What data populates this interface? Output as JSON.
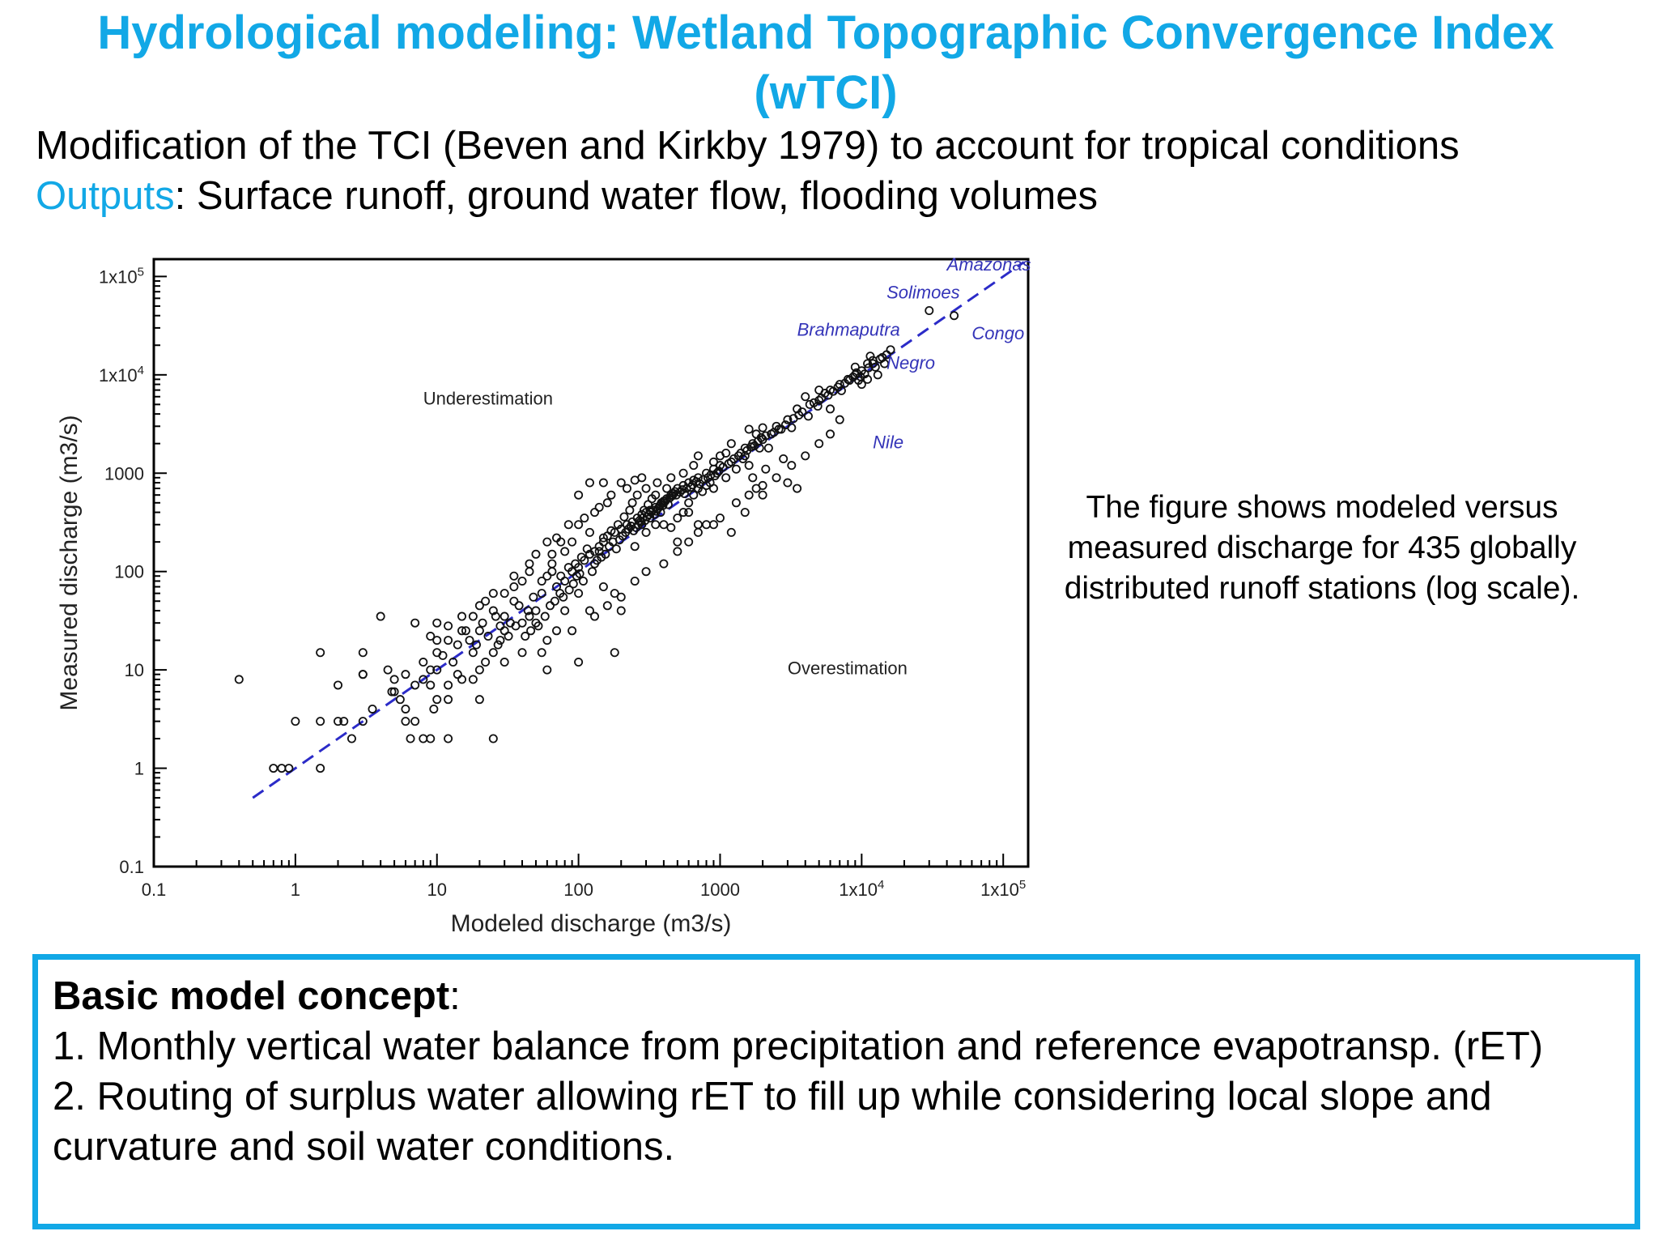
{
  "header": {
    "title": "Hydrological modeling: Wetland Topographic Convergence Index (wTCI)",
    "line1": "Modification of the TCI (Beven and Kirkby 1979) to account for tropical conditions",
    "line2_label": "Outputs",
    "line2_sep": ":",
    "line2_text": " Surface runoff, ground water flow, flooding volumes"
  },
  "caption": "The figure shows modeled versus measured discharge for 435 globally distributed runoff stations (log scale).",
  "concept": {
    "heading": "Basic model concept",
    "heading_sep": ":",
    "item1": "1. Monthly vertical water balance from precipitation and reference evapotransp. (rET)",
    "item2": "2. Routing of surplus water allowing rET to fill up while considering local slope and curvature and soil water conditions."
  },
  "colors": {
    "accent": "#12a8e6",
    "fit_line": "#2b2bc8",
    "river_label": "#3434b8"
  },
  "chart_data": {
    "type": "scatter",
    "xlabel": "Modeled discharge (m3/s)",
    "ylabel": "Measured discharge (m3/s)",
    "xscale": "log",
    "yscale": "log",
    "xlim": [
      0.1,
      150000
    ],
    "ylim": [
      0.1,
      150000
    ],
    "x_ticks": [
      {
        "value": 0.1,
        "label": "0.1"
      },
      {
        "value": 1,
        "label": "1"
      },
      {
        "value": 10,
        "label": "10"
      },
      {
        "value": 100,
        "label": "100"
      },
      {
        "value": 1000,
        "label": "1000"
      },
      {
        "value": 10000,
        "label": "1x10",
        "exp": "4"
      },
      {
        "value": 100000,
        "label": "1x10",
        "exp": "5"
      }
    ],
    "y_ticks": [
      {
        "value": 0.1,
        "label": "0.1"
      },
      {
        "value": 1,
        "label": "1"
      },
      {
        "value": 10,
        "label": "10"
      },
      {
        "value": 100,
        "label": "100"
      },
      {
        "value": 1000,
        "label": "1000"
      },
      {
        "value": 10000,
        "label": "1x10",
        "exp": "4"
      },
      {
        "value": 100000,
        "label": "1x10",
        "exp": "5"
      }
    ],
    "annotations": [
      {
        "text": "Underestimation",
        "x": 8,
        "y": 5000
      },
      {
        "text": "Overestimation",
        "x": 3000,
        "y": 9
      }
    ],
    "river_labels": [
      {
        "text": "Amazonas",
        "x": 40000,
        "y": 115000
      },
      {
        "text": "Solimoes",
        "x": 15000,
        "y": 60000
      },
      {
        "text": "Brahmaputra",
        "x": 3500,
        "y": 25000
      },
      {
        "text": "Congo",
        "x": 60000,
        "y": 23000
      },
      {
        "text": "Negro",
        "x": 15000,
        "y": 11500
      },
      {
        "text": "Nile",
        "x": 12000,
        "y": 1800
      }
    ],
    "fit_line": {
      "x": [
        0.5,
        140000
      ],
      "y": [
        0.5,
        140000
      ],
      "style": "dashed"
    },
    "points": [
      [
        0.4,
        8
      ],
      [
        0.7,
        1
      ],
      [
        0.8,
        1
      ],
      [
        0.9,
        1
      ],
      [
        1.5,
        15
      ],
      [
        1.5,
        1
      ],
      [
        1,
        3
      ],
      [
        1.5,
        3
      ],
      [
        2,
        3
      ],
      [
        2.2,
        3
      ],
      [
        2,
        7
      ],
      [
        3,
        9
      ],
      [
        2.5,
        2
      ],
      [
        3,
        3
      ],
      [
        3.5,
        4
      ],
      [
        3,
        15
      ],
      [
        4,
        35
      ],
      [
        3,
        9
      ],
      [
        5,
        8
      ],
      [
        4.5,
        10
      ],
      [
        5,
        6
      ],
      [
        6,
        4
      ],
      [
        6,
        3
      ],
      [
        6.5,
        2
      ],
      [
        7,
        3
      ],
      [
        8,
        2
      ],
      [
        9,
        2
      ],
      [
        8,
        8
      ],
      [
        9,
        10
      ],
      [
        9.5,
        4
      ],
      [
        12,
        2
      ],
      [
        10,
        5
      ],
      [
        12,
        5
      ],
      [
        7,
        30
      ],
      [
        10,
        20
      ],
      [
        15,
        25
      ],
      [
        10,
        15
      ],
      [
        12,
        20
      ],
      [
        15,
        8
      ],
      [
        18,
        8
      ],
      [
        20,
        5
      ],
      [
        25,
        2
      ],
      [
        20,
        10
      ],
      [
        25,
        15
      ],
      [
        28,
        20
      ],
      [
        30,
        25
      ],
      [
        30,
        12
      ],
      [
        35,
        50
      ],
      [
        40,
        30
      ],
      [
        45,
        35
      ],
      [
        50,
        40
      ],
      [
        55,
        60
      ],
      [
        60,
        90
      ],
      [
        65,
        100
      ],
      [
        70,
        70
      ],
      [
        80,
        80
      ],
      [
        90,
        100
      ],
      [
        100,
        110
      ],
      [
        110,
        130
      ],
      [
        120,
        150
      ],
      [
        130,
        160
      ],
      [
        140,
        180
      ],
      [
        150,
        200
      ],
      [
        160,
        230
      ],
      [
        180,
        250
      ],
      [
        200,
        270
      ],
      [
        220,
        300
      ],
      [
        240,
        320
      ],
      [
        260,
        350
      ],
      [
        280,
        380
      ],
      [
        300,
        400
      ],
      [
        320,
        420
      ],
      [
        350,
        450
      ],
      [
        380,
        480
      ],
      [
        400,
        520
      ],
      [
        420,
        550
      ],
      [
        450,
        600
      ],
      [
        480,
        650
      ],
      [
        500,
        700
      ],
      [
        550,
        750
      ],
      [
        600,
        800
      ],
      [
        650,
        850
      ],
      [
        700,
        900
      ],
      [
        800,
        1000
      ],
      [
        900,
        1100
      ],
      [
        1000,
        1200
      ],
      [
        1200,
        1300
      ],
      [
        1400,
        1600
      ],
      [
        1500,
        1800
      ],
      [
        1700,
        2000
      ],
      [
        2000,
        2200
      ],
      [
        2300,
        2500
      ],
      [
        2500,
        3000
      ],
      [
        3000,
        3500
      ],
      [
        3500,
        4500
      ],
      [
        4000,
        6000
      ],
      [
        5000,
        5500
      ],
      [
        6000,
        7000
      ],
      [
        7000,
        8000
      ],
      [
        8000,
        9000
      ],
      [
        9000,
        10000
      ],
      [
        10000,
        11000
      ],
      [
        12000,
        13000
      ],
      [
        14000,
        15000
      ],
      [
        16000,
        18000
      ],
      [
        30000,
        45000
      ],
      [
        45000,
        40000
      ],
      [
        11000,
        13000
      ],
      [
        10000,
        8000
      ],
      [
        11000,
        9000
      ],
      [
        9000,
        12000
      ],
      [
        7000,
        3500
      ],
      [
        3000,
        800
      ],
      [
        3500,
        700
      ],
      [
        1200,
        250
      ],
      [
        2000,
        600
      ],
      [
        1700,
        900
      ],
      [
        1500,
        400
      ],
      [
        800,
        300
      ],
      [
        1000,
        1500
      ],
      [
        1200,
        2000
      ],
      [
        1500,
        1500
      ],
      [
        1800,
        2500
      ],
      [
        1800,
        700
      ],
      [
        600,
        400
      ],
      [
        700,
        300
      ],
      [
        500,
        200
      ],
      [
        400,
        500
      ],
      [
        350,
        600
      ],
      [
        300,
        700
      ],
      [
        280,
        900
      ],
      [
        250,
        850
      ],
      [
        120,
        800
      ],
      [
        250,
        180
      ],
      [
        200,
        40
      ],
      [
        150,
        70
      ],
      [
        120,
        40
      ],
      [
        100,
        12
      ],
      [
        180,
        15
      ],
      [
        180,
        60
      ],
      [
        100,
        60
      ],
      [
        80,
        40
      ],
      [
        70,
        25
      ],
      [
        60,
        20
      ],
      [
        40,
        15
      ],
      [
        50,
        30
      ],
      [
        30,
        35
      ],
      [
        25,
        40
      ],
      [
        20,
        25
      ],
      [
        18,
        15
      ],
      [
        15,
        35
      ],
      [
        20,
        45
      ],
      [
        25,
        60
      ],
      [
        35,
        70
      ],
      [
        40,
        80
      ],
      [
        45,
        120
      ],
      [
        50,
        150
      ],
      [
        60,
        200
      ],
      [
        70,
        220
      ],
      [
        80,
        160
      ],
      [
        90,
        200
      ],
      [
        100,
        300
      ],
      [
        110,
        350
      ],
      [
        120,
        250
      ],
      [
        130,
        400
      ],
      [
        140,
        450
      ],
      [
        160,
        500
      ],
      [
        170,
        600
      ],
      [
        200,
        800
      ],
      [
        220,
        700
      ],
      [
        240,
        500
      ],
      [
        260,
        600
      ],
      [
        280,
        300
      ],
      [
        300,
        250
      ],
      [
        320,
        350
      ],
      [
        350,
        300
      ],
      [
        380,
        400
      ],
      [
        400,
        300
      ],
      [
        450,
        280
      ],
      [
        500,
        350
      ],
      [
        550,
        400
      ],
      [
        600,
        500
      ],
      [
        650,
        600
      ],
      [
        700,
        700
      ],
      [
        750,
        650
      ],
      [
        800,
        750
      ],
      [
        850,
        800
      ],
      [
        900,
        700
      ],
      [
        950,
        1000
      ],
      [
        1100,
        900
      ],
      [
        1300,
        1100
      ],
      [
        1600,
        1200
      ],
      [
        2200,
        1800
      ],
      [
        2600,
        2800
      ],
      [
        1600,
        2800
      ],
      [
        2000,
        2900
      ],
      [
        12000,
        14000
      ],
      [
        13000,
        10000
      ],
      [
        5000,
        7000
      ],
      [
        6000,
        4500
      ],
      [
        9500,
        8800
      ],
      [
        11500,
        15500
      ],
      [
        15000,
        16000
      ],
      [
        4200,
        3800
      ],
      [
        5500,
        6500
      ],
      [
        3200,
        2900
      ],
      [
        2800,
        1400
      ],
      [
        2100,
        1100
      ],
      [
        1900,
        1800
      ],
      [
        1100,
        1600
      ],
      [
        900,
        1300
      ],
      [
        700,
        1500
      ],
      [
        650,
        1200
      ],
      [
        550,
        1000
      ],
      [
        450,
        900
      ],
      [
        420,
        700
      ],
      [
        360,
        800
      ],
      [
        330,
        550
      ],
      [
        310,
        480
      ],
      [
        290,
        420
      ],
      [
        270,
        330
      ],
      [
        230,
        420
      ],
      [
        210,
        360
      ],
      [
        190,
        300
      ],
      [
        170,
        260
      ],
      [
        150,
        220
      ],
      [
        140,
        160
      ],
      [
        130,
        120
      ],
      [
        115,
        170
      ],
      [
        105,
        140
      ],
      [
        95,
        120
      ],
      [
        85,
        110
      ],
      [
        75,
        90
      ],
      [
        65,
        120
      ],
      [
        55,
        80
      ],
      [
        48,
        55
      ],
      [
        44,
        40
      ],
      [
        38,
        45
      ],
      [
        33,
        30
      ],
      [
        28,
        28
      ],
      [
        26,
        35
      ],
      [
        23,
        22
      ],
      [
        21,
        30
      ],
      [
        19,
        18
      ],
      [
        17,
        20
      ],
      [
        14,
        18
      ],
      [
        13,
        12
      ],
      [
        11,
        14
      ],
      [
        10,
        10
      ],
      [
        9,
        7
      ],
      [
        8,
        12
      ],
      [
        7,
        7
      ],
      [
        6,
        9
      ],
      [
        5.5,
        5
      ],
      [
        4.8,
        6
      ],
      [
        12,
        7
      ],
      [
        14,
        9
      ],
      [
        22,
        12
      ],
      [
        27,
        18
      ],
      [
        32,
        22
      ],
      [
        36,
        28
      ],
      [
        42,
        22
      ],
      [
        46,
        25
      ],
      [
        52,
        28
      ],
      [
        58,
        35
      ],
      [
        63,
        45
      ],
      [
        68,
        50
      ],
      [
        74,
        60
      ],
      [
        78,
        55
      ],
      [
        86,
        65
      ],
      [
        92,
        75
      ],
      [
        97,
        90
      ],
      [
        102,
        95
      ],
      [
        108,
        80
      ],
      [
        125,
        100
      ],
      [
        135,
        130
      ],
      [
        145,
        140
      ],
      [
        155,
        150
      ],
      [
        165,
        180
      ],
      [
        175,
        200
      ],
      [
        185,
        170
      ],
      [
        195,
        210
      ],
      [
        205,
        230
      ],
      [
        215,
        250
      ],
      [
        225,
        270
      ],
      [
        235,
        290
      ],
      [
        245,
        260
      ],
      [
        255,
        280
      ],
      [
        265,
        300
      ],
      [
        275,
        320
      ],
      [
        285,
        350
      ],
      [
        295,
        330
      ],
      [
        305,
        360
      ],
      [
        315,
        380
      ],
      [
        325,
        400
      ],
      [
        335,
        420
      ],
      [
        345,
        380
      ],
      [
        355,
        410
      ],
      [
        365,
        440
      ],
      [
        375,
        460
      ],
      [
        385,
        500
      ],
      [
        395,
        470
      ],
      [
        410,
        520
      ],
      [
        430,
        480
      ],
      [
        440,
        560
      ],
      [
        460,
        590
      ],
      [
        470,
        620
      ],
      [
        490,
        600
      ],
      [
        520,
        640
      ],
      [
        540,
        680
      ],
      [
        560,
        620
      ],
      [
        580,
        700
      ],
      [
        620,
        720
      ],
      [
        640,
        760
      ],
      [
        680,
        820
      ],
      [
        720,
        780
      ],
      [
        760,
        860
      ],
      [
        820,
        900
      ],
      [
        860,
        960
      ],
      [
        920,
        940
      ],
      [
        980,
        1050
      ],
      [
        1050,
        1150
      ],
      [
        1150,
        1250
      ],
      [
        1250,
        1400
      ],
      [
        1350,
        1500
      ],
      [
        1450,
        1400
      ],
      [
        1550,
        1700
      ],
      [
        1650,
        1850
      ],
      [
        1750,
        1900
      ],
      [
        1850,
        2100
      ],
      [
        1950,
        2300
      ],
      [
        2100,
        2400
      ],
      [
        2400,
        2600
      ],
      [
        2700,
        2800
      ],
      [
        2900,
        3100
      ],
      [
        3300,
        3600
      ],
      [
        3600,
        3900
      ],
      [
        3800,
        4200
      ],
      [
        4300,
        5000
      ],
      [
        4600,
        5200
      ],
      [
        4900,
        4800
      ],
      [
        5200,
        5800
      ],
      [
        5800,
        6200
      ],
      [
        6300,
        6800
      ],
      [
        6800,
        7500
      ],
      [
        7200,
        6900
      ],
      [
        7600,
        8200
      ],
      [
        8200,
        8800
      ],
      [
        8700,
        9500
      ],
      [
        9200,
        10500
      ],
      [
        9800,
        9600
      ],
      [
        10500,
        10200
      ],
      [
        11200,
        11800
      ],
      [
        12500,
        12000
      ],
      [
        13500,
        14500
      ],
      [
        14500,
        13000
      ],
      [
        100,
        600
      ],
      [
        150,
        800
      ],
      [
        85,
        300
      ],
      [
        75,
        200
      ],
      [
        65,
        150
      ],
      [
        45,
        100
      ],
      [
        35,
        90
      ],
      [
        30,
        60
      ],
      [
        22,
        50
      ],
      [
        18,
        35
      ],
      [
        16,
        25
      ],
      [
        12,
        28
      ],
      [
        10,
        30
      ],
      [
        9,
        22
      ],
      [
        60,
        10
      ],
      [
        55,
        15
      ],
      [
        90,
        25
      ],
      [
        130,
        35
      ],
      [
        160,
        45
      ],
      [
        200,
        55
      ],
      [
        250,
        80
      ],
      [
        300,
        100
      ],
      [
        400,
        120
      ],
      [
        500,
        160
      ],
      [
        600,
        200
      ],
      [
        700,
        250
      ],
      [
        900,
        300
      ],
      [
        1000,
        350
      ],
      [
        1300,
        500
      ],
      [
        1600,
        600
      ],
      [
        2000,
        750
      ],
      [
        2500,
        900
      ],
      [
        3200,
        1200
      ],
      [
        4000,
        1500
      ],
      [
        5000,
        2000
      ],
      [
        6000,
        2500
      ]
    ]
  }
}
